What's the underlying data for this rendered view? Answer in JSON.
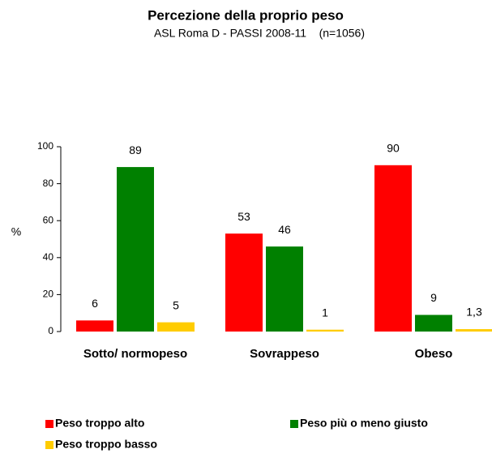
{
  "chart_data": {
    "type": "bar",
    "title": "Percezione della proprio peso",
    "subtitle": "ASL Roma D - PASSI 2008-11    (n=1056)",
    "y_label": "%",
    "categories": [
      "Sotto/ normopeso",
      "Sovrappeso",
      "Obeso"
    ],
    "series": [
      {
        "name": "Peso troppo alto",
        "color": "#ff0000",
        "values": [
          6,
          53,
          90
        ]
      },
      {
        "name": "Peso più o meno giusto",
        "color": "#008000",
        "values": [
          89,
          46,
          9
        ]
      },
      {
        "name": "Peso troppo basso",
        "color": "#ffcc00",
        "values": [
          5,
          1,
          1.3
        ],
        "value_labels": [
          "5",
          "1",
          "1,3"
        ]
      }
    ],
    "ylim": [
      0,
      100
    ],
    "yticks": [
      0,
      20,
      40,
      60,
      80,
      100
    ],
    "grid": false
  }
}
